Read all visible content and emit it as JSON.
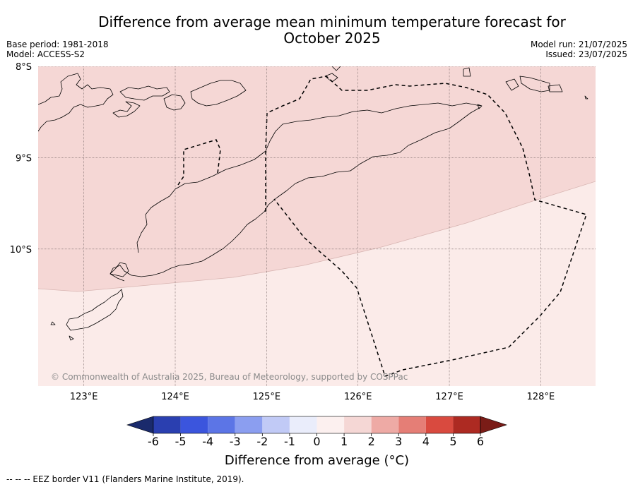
{
  "title": {
    "line1": "Difference from average mean minimum temperature forecast for",
    "line2": "October 2025"
  },
  "meta": {
    "base_period": "Base period: 1981-2018",
    "model": "Model: ACCESS-S2",
    "model_run": "Model run: 21/07/2025",
    "issued": "Issued: 23/07/2025"
  },
  "map": {
    "copyright": "© Commonwealth of Australia 2025, Bureau of Meteorology, supported by COSPPac",
    "lat_labels": [
      "8°S",
      "9°S",
      "10°S"
    ],
    "lon_labels": [
      "123°E",
      "124°E",
      "125°E",
      "126°E",
      "127°E",
      "128°E"
    ],
    "lon_range": [
      122.5,
      128.6
    ],
    "lat_range": [
      -11.5,
      -8.0
    ],
    "colors": {
      "band_1_to_2": "#f5d7d5",
      "band_0_to_1": "#fbebe9",
      "coast": "#000000",
      "grid": "#7a6a6a"
    }
  },
  "colorbar": {
    "title": "Difference from average (°C)",
    "ticks": [
      "-6",
      "-5",
      "-4",
      "-3",
      "-2",
      "-1",
      "0",
      "1",
      "2",
      "3",
      "4",
      "5",
      "6"
    ],
    "colors": [
      "#1a2a6c",
      "#2a3fb0",
      "#3b55dd",
      "#5c75e6",
      "#8b9ef0",
      "#c1caf6",
      "#eaedfb",
      "#fcf0ef",
      "#f5d7d5",
      "#eeaaa5",
      "#e57e76",
      "#d94a3f",
      "#ad2a22",
      "#7a1c17"
    ]
  },
  "footnote": "--  --  -- EEZ border V11 (Flanders Marine Institute, 2019)."
}
